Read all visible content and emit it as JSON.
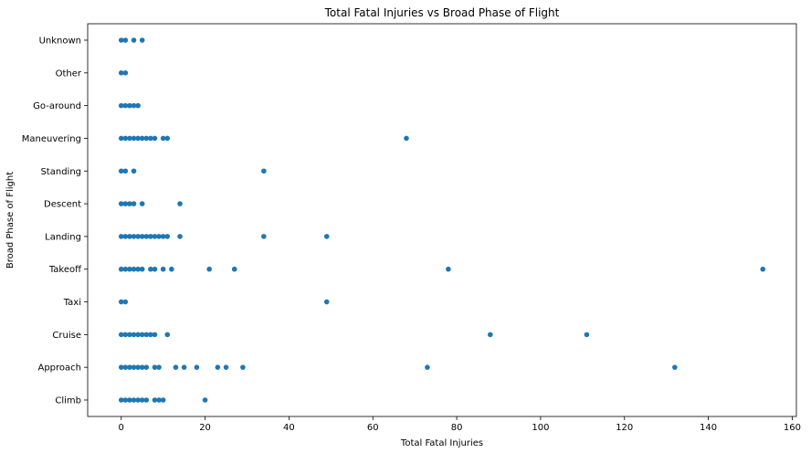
{
  "chart_data": {
    "type": "scatter",
    "title": "Total Fatal Injuries vs Broad Phase of Flight",
    "xlabel": "Total Fatal Injuries",
    "ylabel": "Broad Phase of Flight",
    "xlim": [
      -8,
      161
    ],
    "xticks": [
      0,
      20,
      40,
      60,
      80,
      100,
      120,
      140,
      160
    ],
    "categories": [
      "Climb",
      "Approach",
      "Cruise",
      "Taxi",
      "Takeoff",
      "Landing",
      "Descent",
      "Standing",
      "Maneuvering",
      "Go-around",
      "Other",
      "Unknown"
    ],
    "marker_color": "#1f77b4",
    "grid": false,
    "series": [
      {
        "category": "Unknown",
        "x": [
          0,
          1,
          3,
          5
        ]
      },
      {
        "category": "Other",
        "x": [
          0,
          1
        ]
      },
      {
        "category": "Go-around",
        "x": [
          0,
          1,
          2,
          3,
          4
        ]
      },
      {
        "category": "Maneuvering",
        "x": [
          0,
          1,
          2,
          3,
          4,
          5,
          6,
          7,
          8,
          10,
          11,
          68
        ]
      },
      {
        "category": "Standing",
        "x": [
          0,
          1,
          3,
          34
        ]
      },
      {
        "category": "Descent",
        "x": [
          0,
          1,
          2,
          3,
          5,
          14
        ]
      },
      {
        "category": "Landing",
        "x": [
          0,
          1,
          2,
          3,
          4,
          5,
          6,
          7,
          8,
          9,
          10,
          11,
          14,
          34,
          49
        ]
      },
      {
        "category": "Takeoff",
        "x": [
          0,
          1,
          2,
          3,
          4,
          5,
          7,
          8,
          10,
          12,
          21,
          27,
          78,
          153
        ]
      },
      {
        "category": "Taxi",
        "x": [
          0,
          1,
          49
        ]
      },
      {
        "category": "Cruise",
        "x": [
          0,
          1,
          2,
          3,
          4,
          5,
          6,
          7,
          8,
          11,
          88,
          111
        ]
      },
      {
        "category": "Approach",
        "x": [
          0,
          1,
          2,
          3,
          4,
          5,
          6,
          8,
          9,
          13,
          15,
          18,
          23,
          25,
          29,
          73,
          132
        ]
      },
      {
        "category": "Climb",
        "x": [
          0,
          1,
          2,
          3,
          4,
          5,
          6,
          8,
          9,
          10,
          20
        ]
      }
    ]
  }
}
